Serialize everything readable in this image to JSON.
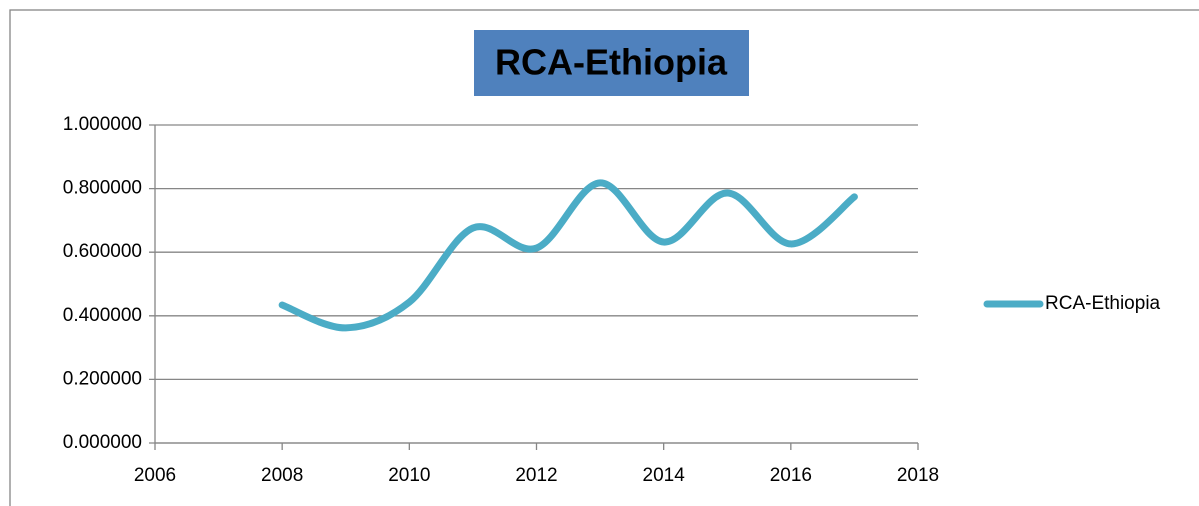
{
  "chart_data": {
    "type": "line",
    "title": "RCA-Ethiopia",
    "x": [
      2008,
      2009,
      2010,
      2011,
      2012,
      2013,
      2014,
      2015,
      2016,
      2017
    ],
    "series": [
      {
        "name": "RCA-Ethiopia",
        "color": "#4bacc6",
        "values": [
          0.434,
          0.362,
          0.443,
          0.676,
          0.613,
          0.818,
          0.632,
          0.786,
          0.626,
          0.774
        ]
      }
    ],
    "xlim": [
      2006,
      2018
    ],
    "xticks": [
      2006,
      2008,
      2010,
      2012,
      2014,
      2016,
      2018
    ],
    "ylim": [
      0,
      1
    ],
    "yticks": [
      {
        "value": 0,
        "label": "0.000000"
      },
      {
        "value": 0.2,
        "label": "0.200000"
      },
      {
        "value": 0.4,
        "label": "0.400000"
      },
      {
        "value": 0.6,
        "label": "0.600000"
      },
      {
        "value": 0.8,
        "label": "0.800000"
      },
      {
        "value": 1,
        "label": "1.000000"
      }
    ],
    "grid": true,
    "legend": "right",
    "smooth": true
  }
}
